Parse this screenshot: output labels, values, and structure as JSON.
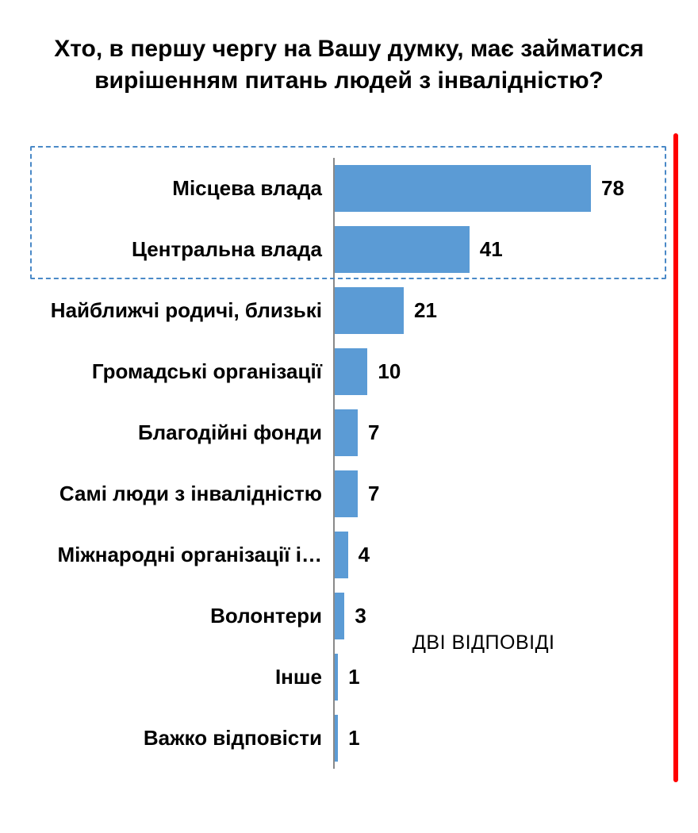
{
  "chart_data": {
    "type": "bar",
    "orientation": "horizontal",
    "title": "Хто, в першу чергу на Вашу думку, має займатися вирішенням питань людей з інвалідністю?",
    "categories": [
      "Місцева влада",
      "Центральна влада",
      "Найближчі родичі, близькі",
      "Громадські організації",
      "Благодійні фонди",
      "Самі люди з інвалідністю",
      "Міжнародні організації і…",
      "Волонтери",
      "Інше",
      "Важко відповісти"
    ],
    "values": [
      78,
      41,
      21,
      10,
      7,
      7,
      4,
      3,
      1,
      1
    ],
    "xlim": [
      0,
      78
    ],
    "data_labels": true,
    "grid": false,
    "legend": false,
    "bar_color": "#5b9bd5",
    "axis_color": "#898989",
    "annotation": "ДВІ ВІДПОВІДІ",
    "highlight": {
      "rows": [
        0,
        1
      ],
      "border_color": "#4a89c7",
      "style": "dashed"
    },
    "accent_line_color": "#ff0000"
  }
}
